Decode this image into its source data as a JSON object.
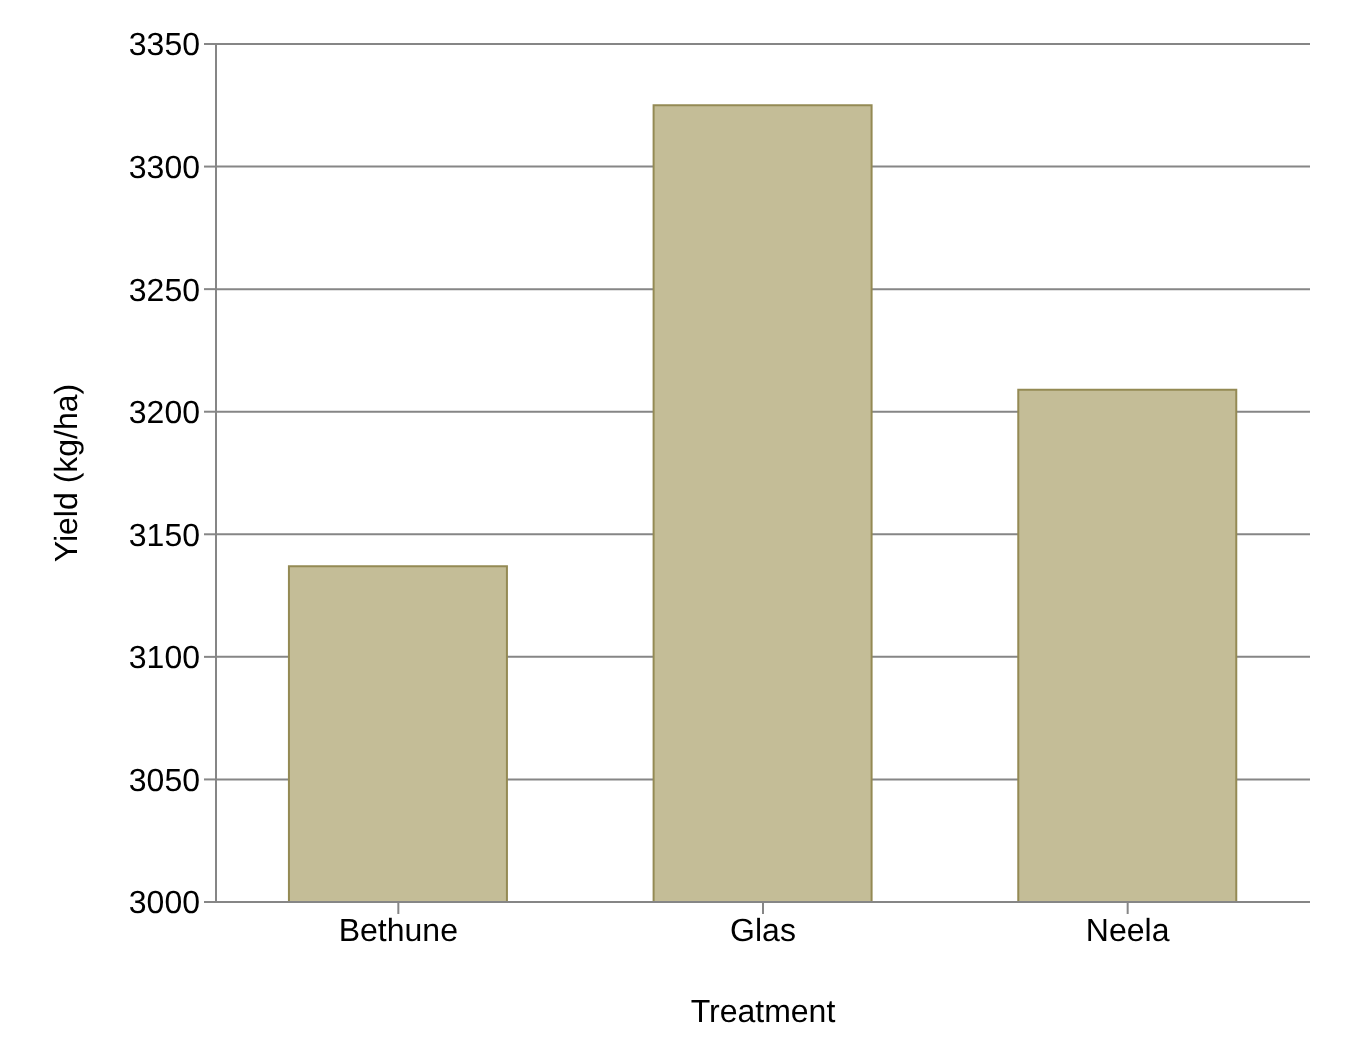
{
  "chart_data": {
    "type": "bar",
    "xlabel": "Treatment",
    "ylabel": "Yield (kg/ha)",
    "categories": [
      "Bethune",
      "Glas",
      "Neela"
    ],
    "series": [
      {
        "color": "#c4bd97",
        "values": [
          3137,
          3325,
          3209
        ]
      }
    ],
    "ylim": [
      3000,
      3350
    ],
    "yticks": [
      3000,
      3050,
      3100,
      3150,
      3200,
      3250,
      3300,
      3350
    ],
    "grid": "y",
    "legend": false
  }
}
